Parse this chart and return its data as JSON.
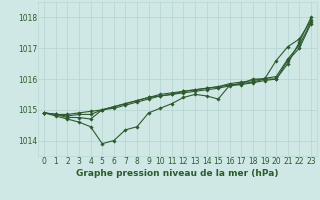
{
  "background_color": "#cfe8e5",
  "grid_color": "#b8d8d5",
  "line_color": "#2d5a2d",
  "title": "Graphe pression niveau de la mer (hPa)",
  "title_fontsize": 6.5,
  "tick_fontsize": 5.5,
  "xlim": [
    -0.5,
    23.5
  ],
  "ylim": [
    1013.5,
    1018.5
  ],
  "yticks": [
    1014,
    1015,
    1016,
    1017,
    1018
  ],
  "xtick_labels": [
    "0",
    "1",
    "2",
    "3",
    "4",
    "5",
    "6",
    "7",
    "8",
    "9",
    "10",
    "11",
    "12",
    "13",
    "14",
    "15",
    "16",
    "17",
    "18",
    "19",
    "20",
    "21",
    "22",
    "23"
  ],
  "series": [
    {
      "x": [
        0,
        1,
        2,
        3,
        4,
        5,
        6,
        7,
        8,
        9,
        10,
        11,
        12,
        13,
        14,
        15,
        16,
        17,
        18,
        19,
        20,
        21,
        22,
        23
      ],
      "y": [
        1014.9,
        1014.85,
        1014.85,
        1014.9,
        1014.95,
        1015.0,
        1015.05,
        1015.15,
        1015.25,
        1015.35,
        1015.45,
        1015.5,
        1015.6,
        1015.65,
        1015.7,
        1015.75,
        1015.8,
        1015.85,
        1015.9,
        1016.0,
        1016.0,
        1016.5,
        1017.2,
        1018.0
      ],
      "marker": "D",
      "markersize": 1.8,
      "linewidth": 0.8
    },
    {
      "x": [
        0,
        1,
        2,
        3,
        4,
        5,
        6,
        7,
        8,
        9,
        10,
        11,
        12,
        13,
        14,
        15,
        16,
        17,
        18,
        19,
        20,
        21,
        22,
        23
      ],
      "y": [
        1014.9,
        1014.8,
        1014.7,
        1014.6,
        1014.45,
        1013.9,
        1014.0,
        1014.35,
        1014.45,
        1014.9,
        1015.05,
        1015.2,
        1015.4,
        1015.5,
        1015.45,
        1015.35,
        1015.8,
        1015.85,
        1016.0,
        1016.0,
        1016.6,
        1017.05,
        1017.3,
        1017.9
      ],
      "marker": "D",
      "markersize": 1.8,
      "linewidth": 0.8
    },
    {
      "x": [
        0,
        1,
        2,
        3,
        4,
        5,
        6,
        7,
        8,
        9,
        10,
        11,
        12,
        13,
        14,
        15,
        16,
        17,
        18,
        19,
        20,
        21,
        22,
        23
      ],
      "y": [
        1014.9,
        1014.85,
        1014.75,
        1014.75,
        1014.7,
        1015.0,
        1015.1,
        1015.2,
        1015.3,
        1015.4,
        1015.45,
        1015.5,
        1015.55,
        1015.6,
        1015.65,
        1015.7,
        1015.78,
        1015.82,
        1015.88,
        1015.95,
        1016.0,
        1016.6,
        1017.0,
        1017.8
      ],
      "marker": "D",
      "markersize": 1.8,
      "linewidth": 0.8
    },
    {
      "x": [
        0,
        1,
        2,
        3,
        4,
        5,
        6,
        7,
        8,
        9,
        10,
        11,
        12,
        13,
        14,
        15,
        16,
        17,
        18,
        19,
        20,
        21,
        22,
        23
      ],
      "y": [
        1014.9,
        1014.85,
        1014.8,
        1014.85,
        1014.85,
        1015.0,
        1015.1,
        1015.2,
        1015.3,
        1015.4,
        1015.5,
        1015.55,
        1015.6,
        1015.65,
        1015.7,
        1015.75,
        1015.85,
        1015.9,
        1015.95,
        1016.02,
        1016.08,
        1016.65,
        1017.1,
        1017.85
      ],
      "marker": "D",
      "markersize": 1.8,
      "linewidth": 0.8
    }
  ]
}
